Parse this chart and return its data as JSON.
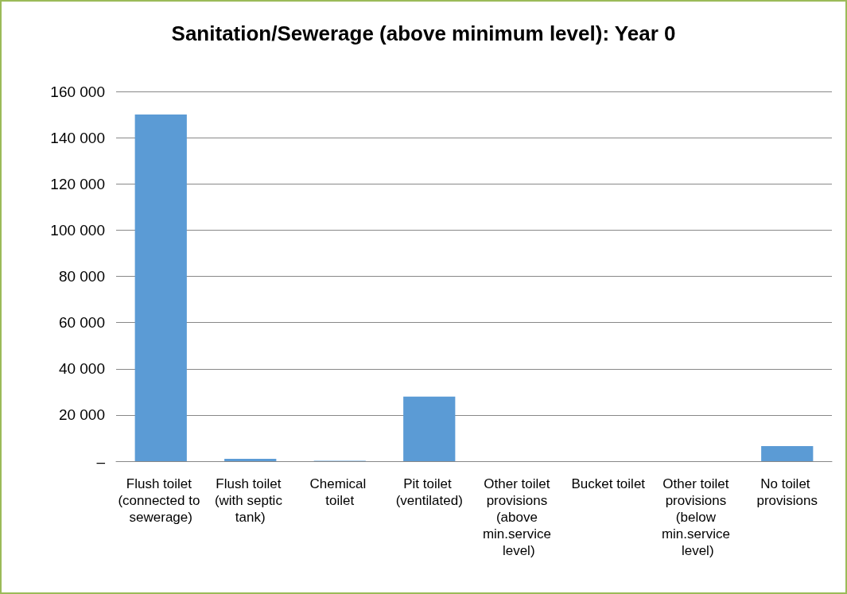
{
  "chart_data": {
    "type": "bar",
    "title": "Sanitation/Sewerage (above minimum level): Year 0",
    "categories": [
      "Flush toilet (connected to sewerage)",
      "Flush toilet (with septic tank)",
      "Chemical toilet",
      "Pit toilet (ventilated)",
      "Other toilet provisions (above min.service level)",
      "Bucket toilet",
      "Other toilet provisions (below min.service level)",
      "No toilet provisions"
    ],
    "values": [
      150000,
      1000,
      200,
      28000,
      0,
      0,
      0,
      6500
    ],
    "color": "#5b9bd5",
    "ylim": [
      0,
      160000
    ],
    "yticks": [
      {
        "value": 0,
        "label": "–"
      },
      {
        "value": 20000,
        "label": "20 000"
      },
      {
        "value": 40000,
        "label": "40 000"
      },
      {
        "value": 60000,
        "label": "60 000"
      },
      {
        "value": 80000,
        "label": "80 000"
      },
      {
        "value": 100000,
        "label": "100 000"
      },
      {
        "value": 120000,
        "label": "120 000"
      },
      {
        "value": 140000,
        "label": "140 000"
      },
      {
        "value": 160000,
        "label": "160 000"
      }
    ],
    "grid": "y"
  }
}
